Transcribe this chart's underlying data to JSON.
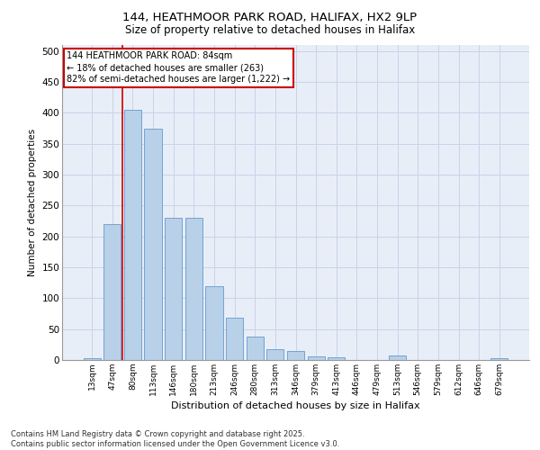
{
  "title_line1": "144, HEATHMOOR PARK ROAD, HALIFAX, HX2 9LP",
  "title_line2": "Size of property relative to detached houses in Halifax",
  "xlabel": "Distribution of detached houses by size in Halifax",
  "ylabel": "Number of detached properties",
  "categories": [
    "13sqm",
    "47sqm",
    "80sqm",
    "113sqm",
    "146sqm",
    "180sqm",
    "213sqm",
    "246sqm",
    "280sqm",
    "313sqm",
    "346sqm",
    "379sqm",
    "413sqm",
    "446sqm",
    "479sqm",
    "513sqm",
    "546sqm",
    "579sqm",
    "612sqm",
    "646sqm",
    "679sqm"
  ],
  "values": [
    3,
    220,
    405,
    375,
    230,
    230,
    120,
    68,
    38,
    17,
    14,
    6,
    5,
    0,
    0,
    7,
    0,
    0,
    0,
    0,
    3
  ],
  "bar_color": "#b8d0e8",
  "bar_edge_color": "#6699cc",
  "grid_color": "#c8d4e8",
  "background_color": "#e8eef8",
  "vline_x_index": 2,
  "annotation_text": "144 HEATHMOOR PARK ROAD: 84sqm\n← 18% of detached houses are smaller (263)\n82% of semi-detached houses are larger (1,222) →",
  "annotation_box_color": "#cc0000",
  "footer_text": "Contains HM Land Registry data © Crown copyright and database right 2025.\nContains public sector information licensed under the Open Government Licence v3.0.",
  "ylim": [
    0,
    510
  ],
  "yticks": [
    0,
    50,
    100,
    150,
    200,
    250,
    300,
    350,
    400,
    450,
    500
  ]
}
